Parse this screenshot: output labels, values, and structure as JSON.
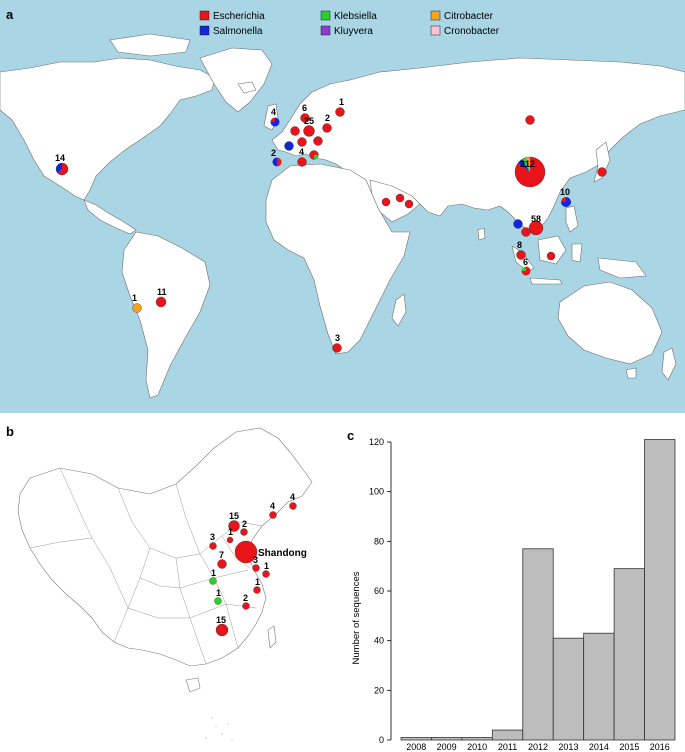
{
  "panels": {
    "a": "a",
    "b": "b",
    "c": "c"
  },
  "legend": [
    {
      "name": "Escherichia",
      "color": "#e8141a"
    },
    {
      "name": "Klebsiella",
      "color": "#2ad12a"
    },
    {
      "name": "Citrobacter",
      "color": "#f5a31a"
    },
    {
      "name": "Salmonella",
      "color": "#1525d8"
    },
    {
      "name": "Kluyvera",
      "color": "#8a3cd0"
    },
    {
      "name": "Cronobacter",
      "color": "#f8c3d2"
    }
  ],
  "map_a_markers": [
    {
      "count": "14",
      "genera": [
        "Escherichia",
        "Salmonella"
      ]
    },
    {
      "count": "11",
      "genera": [
        "Escherichia"
      ]
    },
    {
      "count": "1",
      "genera": [
        "Citrobacter"
      ]
    },
    {
      "count": "3",
      "genera": [
        "Escherichia"
      ]
    },
    {
      "count": "4",
      "genera": [
        "Salmonella",
        "Escherichia"
      ]
    },
    {
      "count": "2",
      "genera": [
        "Escherichia",
        "Salmonella"
      ]
    },
    {
      "count": "6",
      "genera": [
        "Escherichia"
      ]
    },
    {
      "count": "25",
      "genera": [
        "Escherichia"
      ]
    },
    {
      "count": "1",
      "genera": [
        "Escherichia"
      ]
    },
    {
      "count": "2",
      "genera": [
        "Escherichia"
      ]
    },
    {
      "count": "4",
      "genera": [
        "Escherichia"
      ]
    },
    {
      "count": "212",
      "genera": [
        "Escherichia",
        "Salmonella",
        "Klebsiella",
        "Citrobacter"
      ]
    },
    {
      "count": "58",
      "genera": [
        "Escherichia"
      ]
    },
    {
      "count": "10",
      "genera": [
        "Salmonella",
        "Escherichia"
      ]
    },
    {
      "count": "8",
      "genera": [
        "Escherichia"
      ]
    },
    {
      "count": "6",
      "genera": [
        "Escherichia",
        "Klebsiella"
      ]
    }
  ],
  "map_b_markers": [
    {
      "count": "15",
      "genera": [
        "Escherichia"
      ]
    },
    {
      "count": "2",
      "genera": [
        "Escherichia"
      ]
    },
    {
      "count": "1",
      "genera": [
        "Escherichia"
      ]
    },
    {
      "count": "3",
      "genera": [
        "Escherichia"
      ]
    },
    {
      "count": "7",
      "genera": [
        "Escherichia"
      ]
    },
    {
      "count": "4",
      "genera": [
        "Escherichia"
      ]
    },
    {
      "count": "1",
      "genera": [
        "Klebsiella"
      ]
    },
    {
      "count": "2",
      "genera": [
        "Escherichia"
      ]
    }
  ],
  "map_b_label": "Shandong",
  "chart_data": {
    "type": "bar",
    "categories": [
      "2008",
      "2009",
      "2010",
      "2011",
      "2012",
      "2013",
      "2014",
      "2015",
      "2016"
    ],
    "values": [
      1,
      1,
      1,
      4,
      77,
      41,
      43,
      69,
      121
    ],
    "ylabel": "Number of sequences",
    "ylim": [
      0,
      120
    ],
    "yticks": [
      0,
      20,
      40,
      60,
      80,
      100,
      120
    ],
    "bar_color": "#bdbdbd",
    "grid": false
  }
}
